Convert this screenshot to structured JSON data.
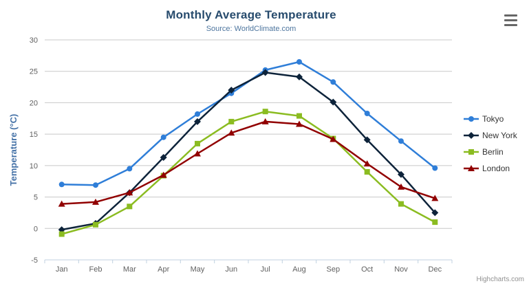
{
  "chart_data": {
    "type": "line",
    "title": "Monthly Average Temperature",
    "subtitle": "Source: WorldClimate.com",
    "xlabel": "",
    "ylabel": "Temperature (°C)",
    "ylim": [
      -5,
      30
    ],
    "ytick_step": 5,
    "grid": true,
    "legend_position": "right",
    "categories": [
      "Jan",
      "Feb",
      "Mar",
      "Apr",
      "May",
      "Jun",
      "Jul",
      "Aug",
      "Sep",
      "Oct",
      "Nov",
      "Dec"
    ],
    "series": [
      {
        "name": "Tokyo",
        "color": "#2f7ed8",
        "marker": "circle",
        "values": [
          7.0,
          6.9,
          9.5,
          14.5,
          18.2,
          21.5,
          25.2,
          26.5,
          23.3,
          18.3,
          13.9,
          9.6
        ]
      },
      {
        "name": "New York",
        "color": "#0d233a",
        "marker": "diamond",
        "values": [
          -0.2,
          0.8,
          5.7,
          11.3,
          17.0,
          22.0,
          24.8,
          24.1,
          20.1,
          14.1,
          8.6,
          2.5
        ]
      },
      {
        "name": "Berlin",
        "color": "#8bbc21",
        "marker": "square",
        "values": [
          -0.9,
          0.6,
          3.5,
          8.4,
          13.5,
          17.0,
          18.6,
          17.9,
          14.3,
          9.0,
          3.9,
          1.0
        ]
      },
      {
        "name": "London",
        "color": "#910000",
        "marker": "triangle",
        "values": [
          3.9,
          4.2,
          5.7,
          8.5,
          11.9,
          15.2,
          17.0,
          16.6,
          14.2,
          10.3,
          6.6,
          4.8
        ]
      }
    ]
  },
  "credits": {
    "label": "Highcharts.com"
  },
  "toolbar": {
    "menu_icon": "hamburger-icon"
  },
  "colors": {
    "title": "#274b6d",
    "subtitle": "#4d759e",
    "axis_title": "#4572a7",
    "tick_label": "#606060",
    "gridline": "#c8c8c8",
    "axis_line": "#c0d0e0",
    "legend_text": "#333333",
    "credits_text": "#909090",
    "menu_icon": "#666666",
    "background": "#ffffff"
  }
}
